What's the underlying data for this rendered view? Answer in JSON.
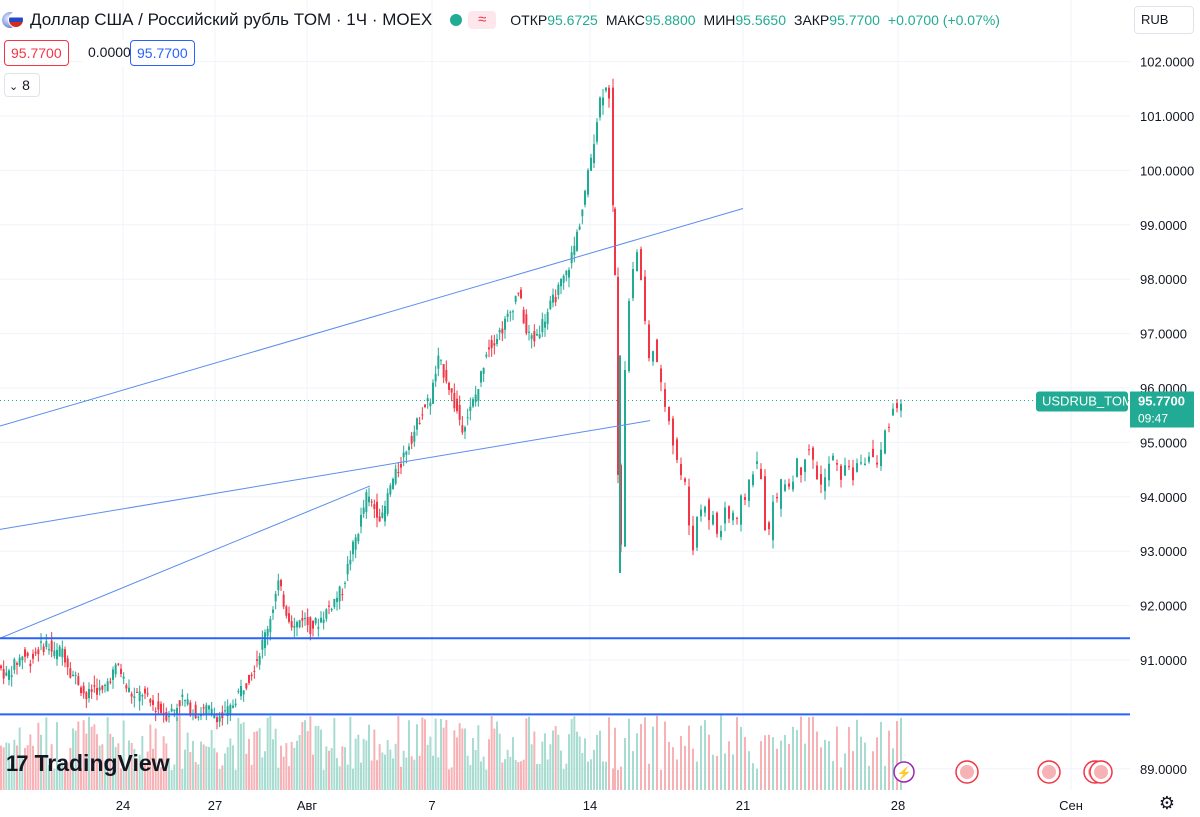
{
  "header": {
    "title": "Доллар США / Российский рубль TOM · 1Ч · MOEX",
    "icon": "usd-rub-flag-icon",
    "open_label": "ОТКР",
    "open_value": "95.6725",
    "high_label": "МАКС",
    "high_value": "95.8800",
    "low_label": "МИН",
    "low_value": "95.5650",
    "close_label": "ЗАКР",
    "close_value": "95.7700",
    "change": "+0.0700 (+0.07%)",
    "bid": "95.7700",
    "spread": "0.0000",
    "ask": "95.7700",
    "indicators_count": "8",
    "currency": "RUB"
  },
  "logo": {
    "text": "TradingView"
  },
  "colors": {
    "up": "#22ab94",
    "down": "#f23645",
    "hline": "#2962ff",
    "trend": "#5b8def",
    "grid": "#f0f3fa"
  },
  "chart_data": {
    "type": "candlestick",
    "symbol": "USDRUB_TOM",
    "last_price": "95.7700",
    "countdown": "09:47",
    "ylim": [
      88.7,
      102.3
    ],
    "yticks": [
      "102.0000",
      "101.0000",
      "100.0000",
      "99.0000",
      "98.0000",
      "97.0000",
      "96.0000",
      "95.0000",
      "94.0000",
      "93.0000",
      "92.0000",
      "91.0000",
      "89.0000"
    ],
    "xticks": [
      "24",
      "27",
      "Авг",
      "7",
      "14",
      "21",
      "28",
      "Сен"
    ],
    "horizontal_levels": [
      91.4,
      90.0
    ],
    "horizontal_level_labels": [
      "91.4000",
      "90.0000"
    ],
    "price_path": [
      [
        0,
        90.9
      ],
      [
        8,
        90.7
      ],
      [
        16,
        90.9
      ],
      [
        24,
        91.1
      ],
      [
        32,
        91.0
      ],
      [
        40,
        91.2
      ],
      [
        48,
        91.3
      ],
      [
        56,
        91.1
      ],
      [
        64,
        91.2
      ],
      [
        72,
        90.8
      ],
      [
        80,
        90.6
      ],
      [
        88,
        90.3
      ],
      [
        96,
        90.5
      ],
      [
        104,
        90.4
      ],
      [
        112,
        90.7
      ],
      [
        120,
        90.9
      ],
      [
        128,
        90.5
      ],
      [
        136,
        90.3
      ],
      [
        144,
        90.4
      ],
      [
        152,
        90.2
      ],
      [
        160,
        90.1
      ],
      [
        168,
        90.0
      ],
      [
        176,
        90.1
      ],
      [
        184,
        90.3
      ],
      [
        192,
        90.1
      ],
      [
        200,
        90.0
      ],
      [
        208,
        90.1
      ],
      [
        216,
        90.0
      ],
      [
        224,
        89.95
      ],
      [
        232,
        90.1
      ],
      [
        240,
        90.4
      ],
      [
        248,
        90.6
      ],
      [
        256,
        90.9
      ],
      [
        264,
        91.3
      ],
      [
        272,
        91.8
      ],
      [
        280,
        92.4
      ],
      [
        288,
        91.9
      ],
      [
        296,
        91.6
      ],
      [
        304,
        91.8
      ],
      [
        312,
        91.6
      ],
      [
        320,
        91.7
      ],
      [
        328,
        91.9
      ],
      [
        336,
        92.1
      ],
      [
        344,
        92.3
      ],
      [
        352,
        92.9
      ],
      [
        360,
        93.4
      ],
      [
        368,
        94.0
      ],
      [
        376,
        93.8
      ],
      [
        384,
        93.6
      ],
      [
        392,
        94.2
      ],
      [
        400,
        94.5
      ],
      [
        408,
        94.9
      ],
      [
        416,
        95.2
      ],
      [
        424,
        95.6
      ],
      [
        432,
        95.8
      ],
      [
        440,
        96.5
      ],
      [
        448,
        96.2
      ],
      [
        456,
        95.7
      ],
      [
        464,
        95.3
      ],
      [
        472,
        95.6
      ],
      [
        480,
        96.0
      ],
      [
        488,
        96.7
      ],
      [
        496,
        96.9
      ],
      [
        504,
        97.1
      ],
      [
        512,
        97.4
      ],
      [
        520,
        97.8
      ],
      [
        528,
        97.0
      ],
      [
        536,
        96.9
      ],
      [
        544,
        97.2
      ],
      [
        552,
        97.5
      ],
      [
        560,
        97.8
      ],
      [
        568,
        98.1
      ],
      [
        576,
        98.6
      ],
      [
        584,
        99.3
      ],
      [
        590,
        99.9
      ],
      [
        596,
        100.6
      ],
      [
        602,
        101.3
      ],
      [
        608,
        101.6
      ],
      [
        612,
        101.4
      ],
      [
        614,
        99.3
      ],
      [
        617,
        98.0
      ],
      [
        620,
        94.5
      ],
      [
        624,
        93.2
      ],
      [
        628,
        96.4
      ],
      [
        632,
        97.6
      ],
      [
        636,
        98.2
      ],
      [
        640,
        98.5
      ],
      [
        644,
        98.0
      ],
      [
        648,
        97.2
      ],
      [
        652,
        96.5
      ],
      [
        656,
        96.8
      ],
      [
        660,
        96.4
      ],
      [
        664,
        96.0
      ],
      [
        668,
        95.7
      ],
      [
        672,
        95.5
      ],
      [
        676,
        95.0
      ],
      [
        680,
        94.7
      ],
      [
        684,
        94.4
      ],
      [
        688,
        94.2
      ],
      [
        692,
        93.5
      ],
      [
        696,
        93.1
      ],
      [
        700,
        93.6
      ],
      [
        704,
        93.8
      ],
      [
        708,
        93.9
      ],
      [
        712,
        93.5
      ],
      [
        716,
        93.7
      ],
      [
        720,
        93.3
      ],
      [
        724,
        93.4
      ],
      [
        728,
        93.8
      ],
      [
        732,
        93.6
      ],
      [
        736,
        93.7
      ],
      [
        740,
        93.5
      ],
      [
        744,
        93.9
      ],
      [
        748,
        94.0
      ],
      [
        752,
        94.3
      ],
      [
        756,
        94.5
      ],
      [
        760,
        94.6
      ],
      [
        764,
        94.3
      ],
      [
        768,
        93.5
      ],
      [
        772,
        93.3
      ],
      [
        776,
        94.0
      ],
      [
        780,
        93.9
      ],
      [
        784,
        94.2
      ],
      [
        788,
        94.3
      ],
      [
        792,
        94.2
      ],
      [
        796,
        94.4
      ],
      [
        800,
        94.6
      ],
      [
        804,
        94.5
      ],
      [
        808,
        94.8
      ],
      [
        812,
        94.9
      ],
      [
        816,
        94.6
      ],
      [
        820,
        94.4
      ],
      [
        824,
        94.2
      ],
      [
        828,
        94.3
      ],
      [
        832,
        94.6
      ],
      [
        836,
        94.7
      ],
      [
        840,
        94.5
      ],
      [
        844,
        94.4
      ],
      [
        848,
        94.5
      ],
      [
        852,
        94.6
      ],
      [
        856,
        94.4
      ],
      [
        860,
        94.5
      ],
      [
        864,
        94.7
      ],
      [
        868,
        94.6
      ],
      [
        872,
        94.8
      ],
      [
        876,
        94.7
      ],
      [
        880,
        94.6
      ],
      [
        884,
        94.8
      ],
      [
        888,
        95.2
      ],
      [
        892,
        95.4
      ],
      [
        896,
        95.6
      ],
      [
        900,
        95.7
      ],
      [
        904,
        95.77
      ]
    ]
  }
}
